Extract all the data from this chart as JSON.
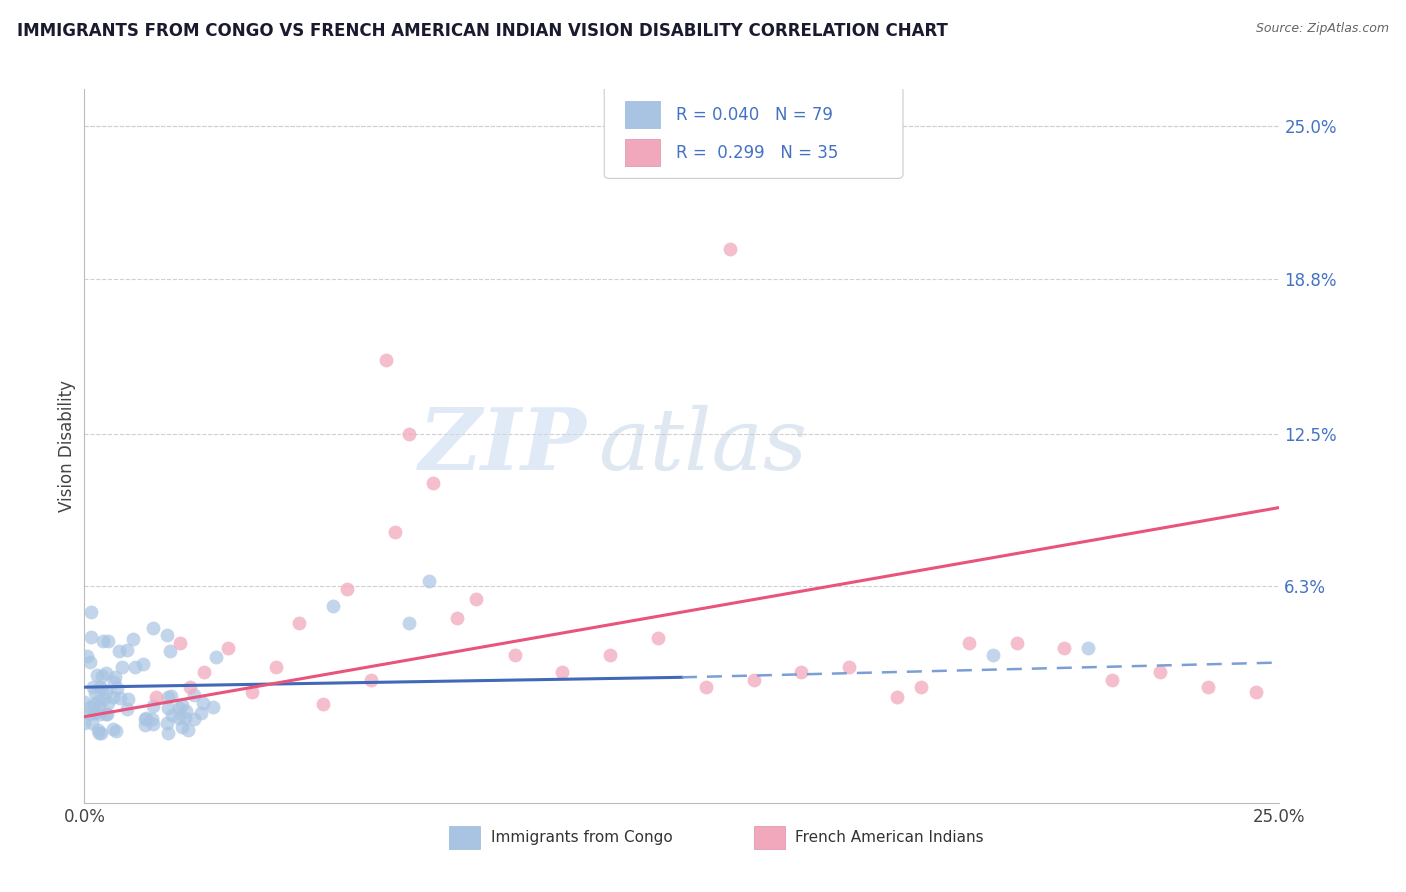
{
  "title": "IMMIGRANTS FROM CONGO VS FRENCH AMERICAN INDIAN VISION DISABILITY CORRELATION CHART",
  "source": "Source: ZipAtlas.com",
  "ylabel": "Vision Disability",
  "ytick_values": [
    0.063,
    0.125,
    0.188,
    0.25
  ],
  "ytick_labels": [
    "6.3%",
    "12.5%",
    "18.8%",
    "25.0%"
  ],
  "xlim": [
    0.0,
    0.25
  ],
  "ylim": [
    -0.025,
    0.265
  ],
  "legend_r1": "0.040",
  "legend_n1": "79",
  "legend_r2": "0.299",
  "legend_n2": "35",
  "color_blue": "#a8c4e2",
  "color_pink": "#f2a8bc",
  "line_color_blue_solid": "#4169b8",
  "line_color_blue_dashed": "#7a9fd4",
  "line_color_pink": "#e8547a",
  "watermark_zip": "ZIP",
  "watermark_atlas": "atlas",
  "bg_color": "#ffffff",
  "grid_color": "#d0d0d0",
  "tick_color": "#4472c4",
  "title_color": "#1a1a2e",
  "source_color": "#666666"
}
